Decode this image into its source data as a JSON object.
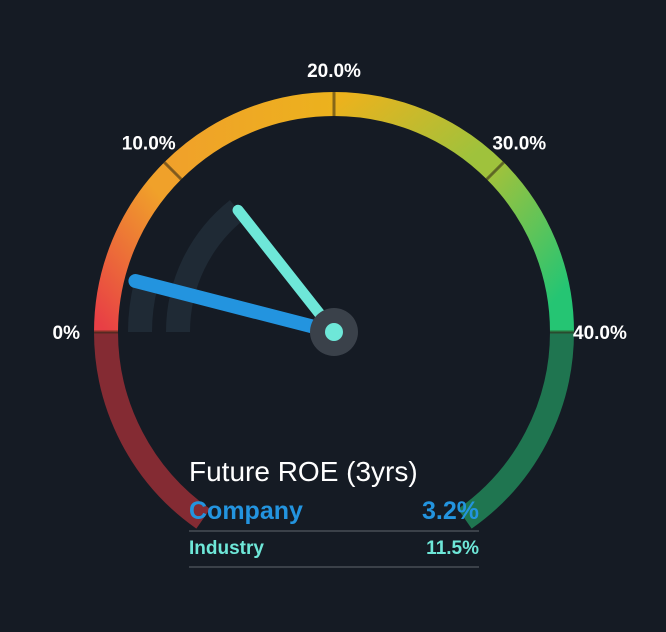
{
  "chart_data": {
    "type": "gauge",
    "title": "Future ROE (3yrs)",
    "range": [
      0,
      40
    ],
    "tick_values": [
      0,
      10,
      20,
      30,
      40
    ],
    "tick_labels": [
      "0%",
      "10.0%",
      "20.0%",
      "30.0%",
      "40.0%"
    ],
    "series": [
      {
        "name": "Company",
        "value": 3.2,
        "display": "3.2%",
        "color": "#2394df"
      },
      {
        "name": "Industry",
        "value": 11.5,
        "display": "11.5%",
        "color": "#6ee7d8"
      }
    ],
    "band_colors": [
      "#e83f45",
      "#f0a12a",
      "#ecb21d",
      "#9fc23c",
      "#25c573"
    ],
    "lower_arc_colors": {
      "left": "#842b33",
      "right": "#1f7550"
    },
    "track_color": "#1f2a35",
    "hub_color": "#3a414a"
  }
}
